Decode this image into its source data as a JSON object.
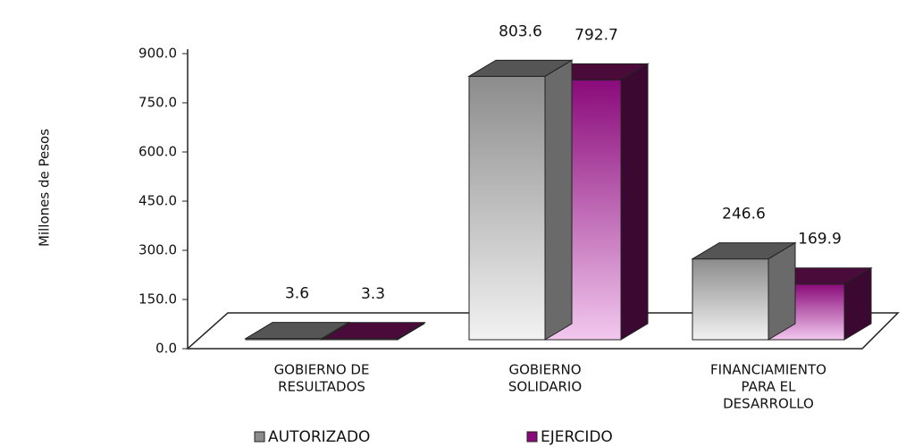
{
  "chart_data": {
    "type": "bar3d",
    "y_label": "Millones de Pesos",
    "categories": [
      [
        "GOBIERNO DE",
        "RESULTADOS"
      ],
      [
        "GOBIERNO",
        "SOLIDARIO"
      ],
      [
        "FINANCIAMIENTO",
        "PARA EL",
        "DESARROLLO"
      ]
    ],
    "series": [
      {
        "name": "AUTORIZADO",
        "color": "#8c8c8c",
        "values": [
          3.6,
          803.6,
          246.6
        ]
      },
      {
        "name": "EJERCIDO",
        "color": "#8a0a7a",
        "values": [
          3.3,
          792.7,
          169.9
        ]
      }
    ],
    "ylim": [
      0,
      900
    ],
    "yticks": [
      {
        "value": 0,
        "label": "0.0"
      },
      {
        "value": 150,
        "label": "150.0"
      },
      {
        "value": 300,
        "label": "300.0"
      },
      {
        "value": 450,
        "label": "450.0"
      },
      {
        "value": 600,
        "label": "600.0"
      },
      {
        "value": 750,
        "label": "750.0"
      },
      {
        "value": 900,
        "label": "900.0"
      }
    ],
    "legend": "bottom"
  }
}
